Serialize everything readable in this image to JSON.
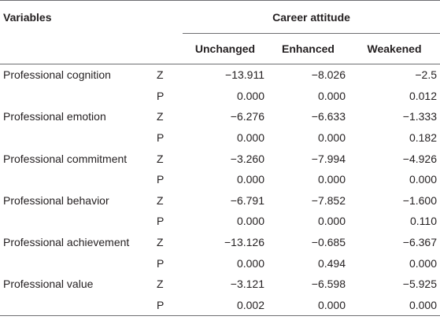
{
  "header": {
    "variables_label": "Variables",
    "group_label": "Career attitude",
    "columns": [
      "Unchanged",
      "Enhanced",
      "Weakened"
    ]
  },
  "rows": [
    {
      "variable": "Professional cognition",
      "z": [
        "−13.911",
        "−8.026",
        "−2.5"
      ],
      "p": [
        "0.000",
        "0.000",
        "0.012"
      ]
    },
    {
      "variable": "Professional emotion",
      "z": [
        "−6.276",
        "−6.633",
        "−1.333"
      ],
      "p": [
        "0.000",
        "0.000",
        "0.182"
      ]
    },
    {
      "variable": "Professional commitment",
      "z": [
        "−3.260",
        "−7.994",
        "−4.926"
      ],
      "p": [
        "0.000",
        "0.000",
        "0.000"
      ]
    },
    {
      "variable": "Professional behavior",
      "z": [
        "−6.791",
        "−7.852",
        "−1.600"
      ],
      "p": [
        "0.000",
        "0.000",
        "0.110"
      ]
    },
    {
      "variable": "Professional achievement",
      "z": [
        "−13.126",
        "−0.685",
        "−6.367"
      ],
      "p": [
        "0.000",
        "0.494",
        "0.000"
      ]
    },
    {
      "variable": "Professional value",
      "z": [
        "−3.121",
        "−6.598",
        "−5.925"
      ],
      "p": [
        "0.002",
        "0.000",
        "0.000"
      ]
    }
  ],
  "stat_labels": {
    "z": "Z",
    "p": "P"
  }
}
